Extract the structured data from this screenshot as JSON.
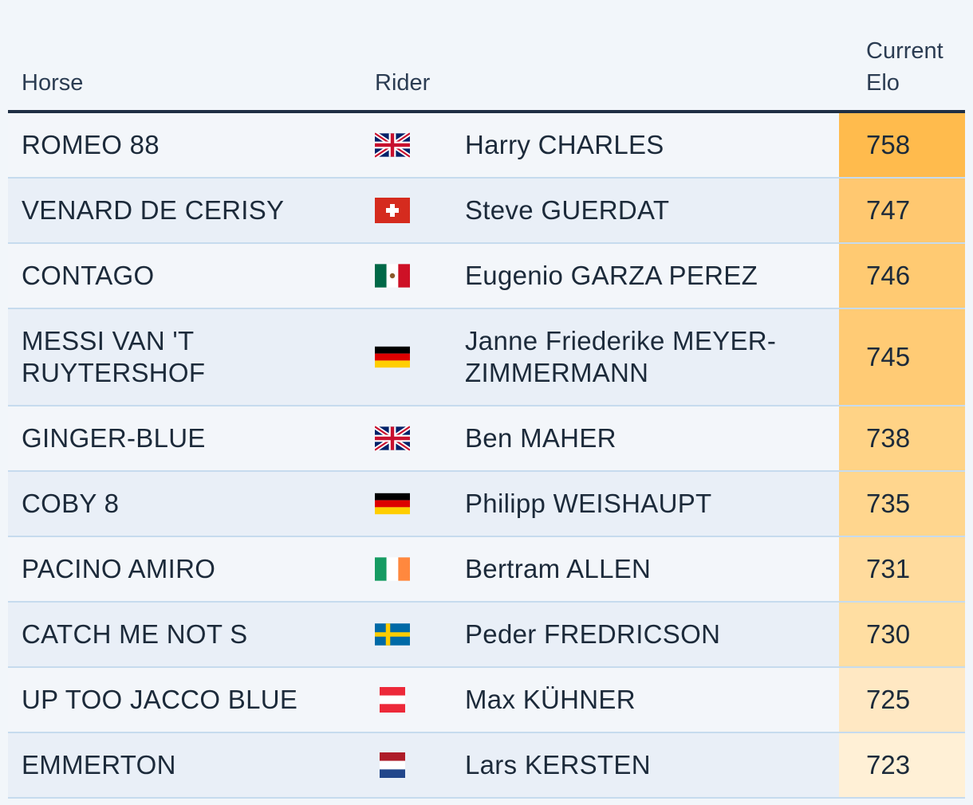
{
  "header": {
    "horse": "Horse",
    "rider": "Rider",
    "elo": "Current Elo"
  },
  "rows": [
    {
      "horse": "ROMEO 88",
      "country": "GBR",
      "rider": "Harry CHARLES",
      "elo": "758",
      "elo_color": "#ffbb4d"
    },
    {
      "horse": "VENARD DE CERISY",
      "country": "SUI",
      "rider": "Steve GUERDAT",
      "elo": "747",
      "elo_color": "#ffc870"
    },
    {
      "horse": "CONTAGO",
      "country": "MEX",
      "rider": "Eugenio GARZA PEREZ",
      "elo": "746",
      "elo_color": "#ffca72"
    },
    {
      "horse": "MESSI VAN 'T RUYTERSHOF",
      "country": "GER",
      "rider": "Janne Friederike MEYER-ZIMMERMANN",
      "elo": "745",
      "elo_color": "#ffcb75"
    },
    {
      "horse": "GINGER-BLUE",
      "country": "GBR",
      "rider": "Ben MAHER",
      "elo": "738",
      "elo_color": "#ffd386"
    },
    {
      "horse": "COBY 8",
      "country": "GER",
      "rider": "Philipp WEISHAUPT",
      "elo": "735",
      "elo_color": "#ffd68e"
    },
    {
      "horse": "PACINO AMIRO",
      "country": "IRL",
      "rider": "Bertram ALLEN",
      "elo": "731",
      "elo_color": "#ffdb9d"
    },
    {
      "horse": "CATCH ME NOT S",
      "country": "SWE",
      "rider": "Peder FREDRICSON",
      "elo": "730",
      "elo_color": "#ffdea2"
    },
    {
      "horse": "UP TOO JACCO BLUE",
      "country": "AUT",
      "rider": "Max KÜHNER",
      "elo": "725",
      "elo_color": "#ffe8c3"
    },
    {
      "horse": "EMMERTON",
      "country": "NED",
      "rider": "Lars KERSTEN",
      "elo": "723",
      "elo_color": "#fff0d6"
    }
  ]
}
